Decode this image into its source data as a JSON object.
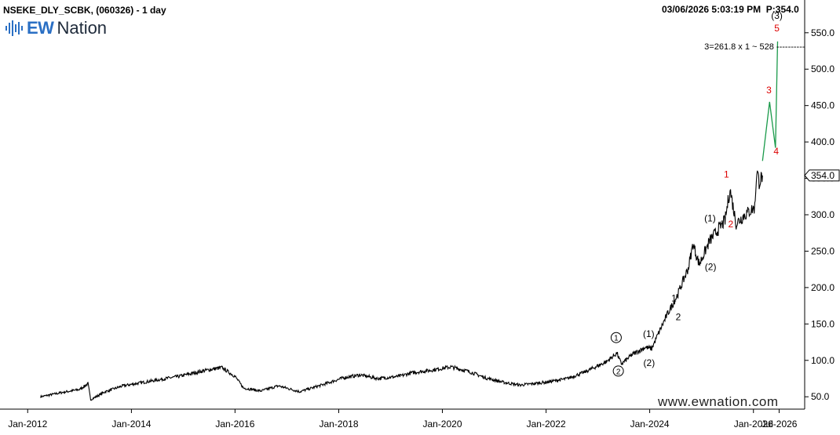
{
  "header": {
    "title": "NSEKE_DLY_SCBK, (060326) - 1 day",
    "datetime": "03/06/2026 5:03:19 PM",
    "price_label": "P:354.0"
  },
  "logo": {
    "ew": "EW",
    "nation": "Nation"
  },
  "watermark": "www.ewnation.com",
  "chart_data": {
    "type": "line",
    "title": "NSEKE_DLY_SCBK, (060326) - 1 day",
    "x_ticks": [
      "Jan-2012",
      "Jan-2014",
      "Jan-2016",
      "Jan-2018",
      "Jan-2020",
      "Jan-2022",
      "Jan-2024",
      "Jan-2026",
      "Jul-2026"
    ],
    "y_ticks": [
      50.0,
      100.0,
      150.0,
      200.0,
      250.0,
      300.0,
      350.0,
      400.0,
      450.0,
      500.0,
      550.0
    ],
    "y_tick_labels": [
      "50.0",
      "100.0",
      "150.0",
      "200.0",
      "250.0",
      "300.0",
      "350.0",
      "400.0",
      "450.0",
      "500.0",
      "550.0"
    ],
    "ylim": [
      33,
      595
    ],
    "xlim": [
      "2011-06-20",
      "2026-12-28"
    ],
    "last_price": 354.0,
    "last_price_label": "354.0",
    "grid": false,
    "series": [
      {
        "color": "#000000",
        "points": [
          [
            "2012-04-01",
            50
          ],
          [
            "2012-09-01",
            56
          ],
          [
            "2013-01-01",
            60
          ],
          [
            "2013-03-01",
            68
          ],
          [
            "2013-03-20",
            46
          ],
          [
            "2013-07-01",
            57
          ],
          [
            "2013-11-01",
            65
          ],
          [
            "2014-06-01",
            72
          ],
          [
            "2014-12-01",
            78
          ],
          [
            "2015-06-01",
            86
          ],
          [
            "2015-10-01",
            90
          ],
          [
            "2016-01-01",
            78
          ],
          [
            "2016-03-01",
            62
          ],
          [
            "2016-07-01",
            58
          ],
          [
            "2016-11-01",
            65
          ],
          [
            "2017-04-01",
            57
          ],
          [
            "2017-09-01",
            66
          ],
          [
            "2018-02-01",
            76
          ],
          [
            "2018-06-01",
            80
          ],
          [
            "2018-10-01",
            75
          ],
          [
            "2019-03-01",
            78
          ],
          [
            "2019-06-01",
            83
          ],
          [
            "2019-10-01",
            86
          ],
          [
            "2020-03-01",
            91
          ],
          [
            "2020-07-01",
            85
          ],
          [
            "2020-11-01",
            76
          ],
          [
            "2021-03-01",
            70
          ],
          [
            "2021-07-01",
            66
          ],
          [
            "2022-01-01",
            70
          ],
          [
            "2022-06-01",
            75
          ],
          [
            "2022-10-01",
            84
          ],
          [
            "2023-03-01",
            98
          ],
          [
            "2023-05-15",
            110
          ],
          [
            "2023-06-15",
            95
          ],
          [
            "2023-09-01",
            108
          ],
          [
            "2023-12-01",
            118
          ],
          [
            "2024-01-15",
            116
          ],
          [
            "2024-02-15",
            130
          ],
          [
            "2024-05-01",
            162
          ],
          [
            "2024-07-15",
            190
          ],
          [
            "2024-10-01",
            228
          ],
          [
            "2024-11-01",
            260
          ],
          [
            "2024-12-15",
            232
          ],
          [
            "2025-03-01",
            265
          ],
          [
            "2025-06-15",
            292
          ],
          [
            "2025-07-20",
            335
          ],
          [
            "2025-09-01",
            288
          ],
          [
            "2025-11-01",
            300
          ],
          [
            "2026-01-10",
            310
          ],
          [
            "2026-01-25",
            362
          ],
          [
            "2026-02-10",
            345
          ],
          [
            "2026-03-06",
            354
          ]
        ]
      },
      {
        "color": "#1a9a4a",
        "points": [
          [
            "2026-03-06",
            374
          ],
          [
            "2026-04-25",
            455
          ],
          [
            "2026-06-05",
            392
          ],
          [
            "2026-06-20",
            538
          ]
        ]
      }
    ],
    "wave_labels": [
      {
        "text": "1",
        "circled": true,
        "x": "2023-05-10",
        "y": 127,
        "color": "#000000"
      },
      {
        "text": "2",
        "circled": true,
        "x": "2023-05-25",
        "y": 81,
        "color": "#000000"
      },
      {
        "text": "(1)",
        "x": "2023-12-25",
        "y": 132,
        "color": "#000000"
      },
      {
        "text": "(2)",
        "x": "2023-12-28",
        "y": 92,
        "color": "#000000"
      },
      {
        "text": "1",
        "x": "2024-06-20",
        "y": 181,
        "color": "#000000"
      },
      {
        "text": "2",
        "x": "2024-07-20",
        "y": 155,
        "color": "#000000"
      },
      {
        "text": "(1)",
        "x": "2025-03-01",
        "y": 291,
        "color": "#000000"
      },
      {
        "text": "(2)",
        "x": "2025-03-05",
        "y": 224,
        "color": "#000000"
      },
      {
        "text": "1",
        "x": "2025-06-25",
        "y": 351,
        "color": "#dd0000"
      },
      {
        "text": "2",
        "x": "2025-07-25",
        "y": 283,
        "color": "#dd0000"
      },
      {
        "text": "3",
        "x": "2026-04-20",
        "y": 467,
        "color": "#dd0000"
      },
      {
        "text": "4",
        "x": "2026-06-10",
        "y": 383,
        "color": "#dd0000"
      },
      {
        "text": "5",
        "x": "2026-06-15",
        "y": 552,
        "color": "#dd0000"
      },
      {
        "text": "(3)",
        "x": "2026-06-15",
        "y": 569,
        "color": "#000000"
      }
    ],
    "annotation": {
      "text": "3=261.8 x 1 ~ 528 ----------",
      "x": "2026-01-10",
      "y": 527
    }
  }
}
